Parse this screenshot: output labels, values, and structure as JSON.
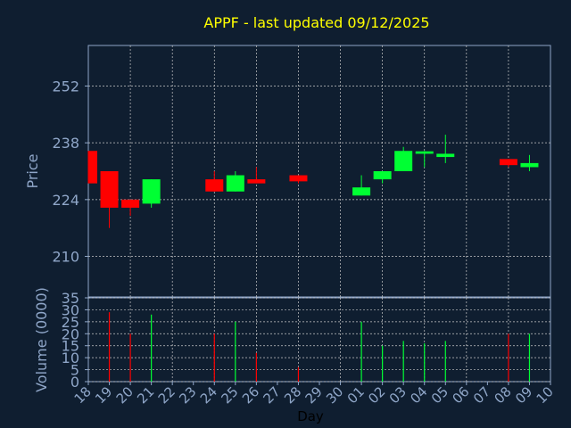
{
  "chart_data": {
    "type": "candlestick",
    "title": "APPF - last updated 09/12/2025",
    "xlabel": "Day",
    "price_panel": {
      "ylabel": "Price",
      "ylim": [
        200,
        262
      ],
      "yticks": [
        "210",
        "224",
        "238",
        "252"
      ],
      "candles": [
        {
          "x": 0,
          "open": 236,
          "high": 236,
          "low": 228,
          "close": 228
        },
        {
          "x": 1,
          "open": 231,
          "high": 231,
          "low": 217,
          "close": 222
        },
        {
          "x": 2,
          "open": 224,
          "high": 224,
          "low": 220,
          "close": 222
        },
        {
          "x": 3,
          "open": 223,
          "high": 229,
          "low": 222,
          "close": 229
        },
        {
          "x": 6,
          "open": 229,
          "high": 231,
          "low": 226,
          "close": 226
        },
        {
          "x": 7,
          "open": 226,
          "high": 231,
          "low": 226,
          "close": 230
        },
        {
          "x": 8,
          "open": 229,
          "high": 232,
          "low": 228,
          "close": 228
        },
        {
          "x": 10,
          "open": 230,
          "high": 230,
          "low": 228,
          "close": 228.5
        },
        {
          "x": 13,
          "open": 225,
          "high": 230,
          "low": 225,
          "close": 227
        },
        {
          "x": 14,
          "open": 229,
          "high": 231,
          "low": 228,
          "close": 231
        },
        {
          "x": 15,
          "open": 231,
          "high": 237,
          "low": 231,
          "close": 236
        },
        {
          "x": 16,
          "open": 235.3,
          "high": 236,
          "low": 232,
          "close": 235.9
        },
        {
          "x": 17,
          "open": 234.5,
          "high": 240,
          "low": 233,
          "close": 235.3
        },
        {
          "x": 20,
          "open": 234,
          "high": 234,
          "low": 232,
          "close": 232.5
        },
        {
          "x": 21,
          "open": 232,
          "high": 235,
          "low": 231,
          "close": 233
        }
      ]
    },
    "volume_panel": {
      "ylabel": "Volume (0000)",
      "ylim": [
        0,
        35
      ],
      "yticks": [
        "0",
        "5",
        "10",
        "15",
        "20",
        "25",
        "30",
        "35"
      ],
      "bars": [
        {
          "x": 1,
          "value": 29,
          "dir": "down"
        },
        {
          "x": 2,
          "value": 20,
          "dir": "down"
        },
        {
          "x": 3,
          "value": 28,
          "dir": "up"
        },
        {
          "x": 6,
          "value": 20,
          "dir": "down"
        },
        {
          "x": 7,
          "value": 25,
          "dir": "up"
        },
        {
          "x": 8,
          "value": 12,
          "dir": "down"
        },
        {
          "x": 10,
          "value": 6,
          "dir": "down"
        },
        {
          "x": 13,
          "value": 25,
          "dir": "up"
        },
        {
          "x": 14,
          "value": 15,
          "dir": "up"
        },
        {
          "x": 15,
          "value": 17,
          "dir": "up"
        },
        {
          "x": 16,
          "value": 16,
          "dir": "up"
        },
        {
          "x": 17,
          "value": 17,
          "dir": "up"
        },
        {
          "x": 20,
          "value": 20,
          "dir": "down"
        },
        {
          "x": 21,
          "value": 20,
          "dir": "up"
        }
      ]
    },
    "xticks": [
      "18",
      "19",
      "20",
      "21",
      "22",
      "23",
      "24",
      "25",
      "26",
      "27",
      "28",
      "29",
      "30",
      "01",
      "02",
      "03",
      "04",
      "05",
      "06",
      "07",
      "08",
      "09",
      "10"
    ],
    "colors": {
      "background": "#0f1e30",
      "up": "#00ff33",
      "down": "#ff0000",
      "grid": "#c8c8c8",
      "axis_text": "#8fa6c8",
      "title": "#ffff00"
    }
  }
}
